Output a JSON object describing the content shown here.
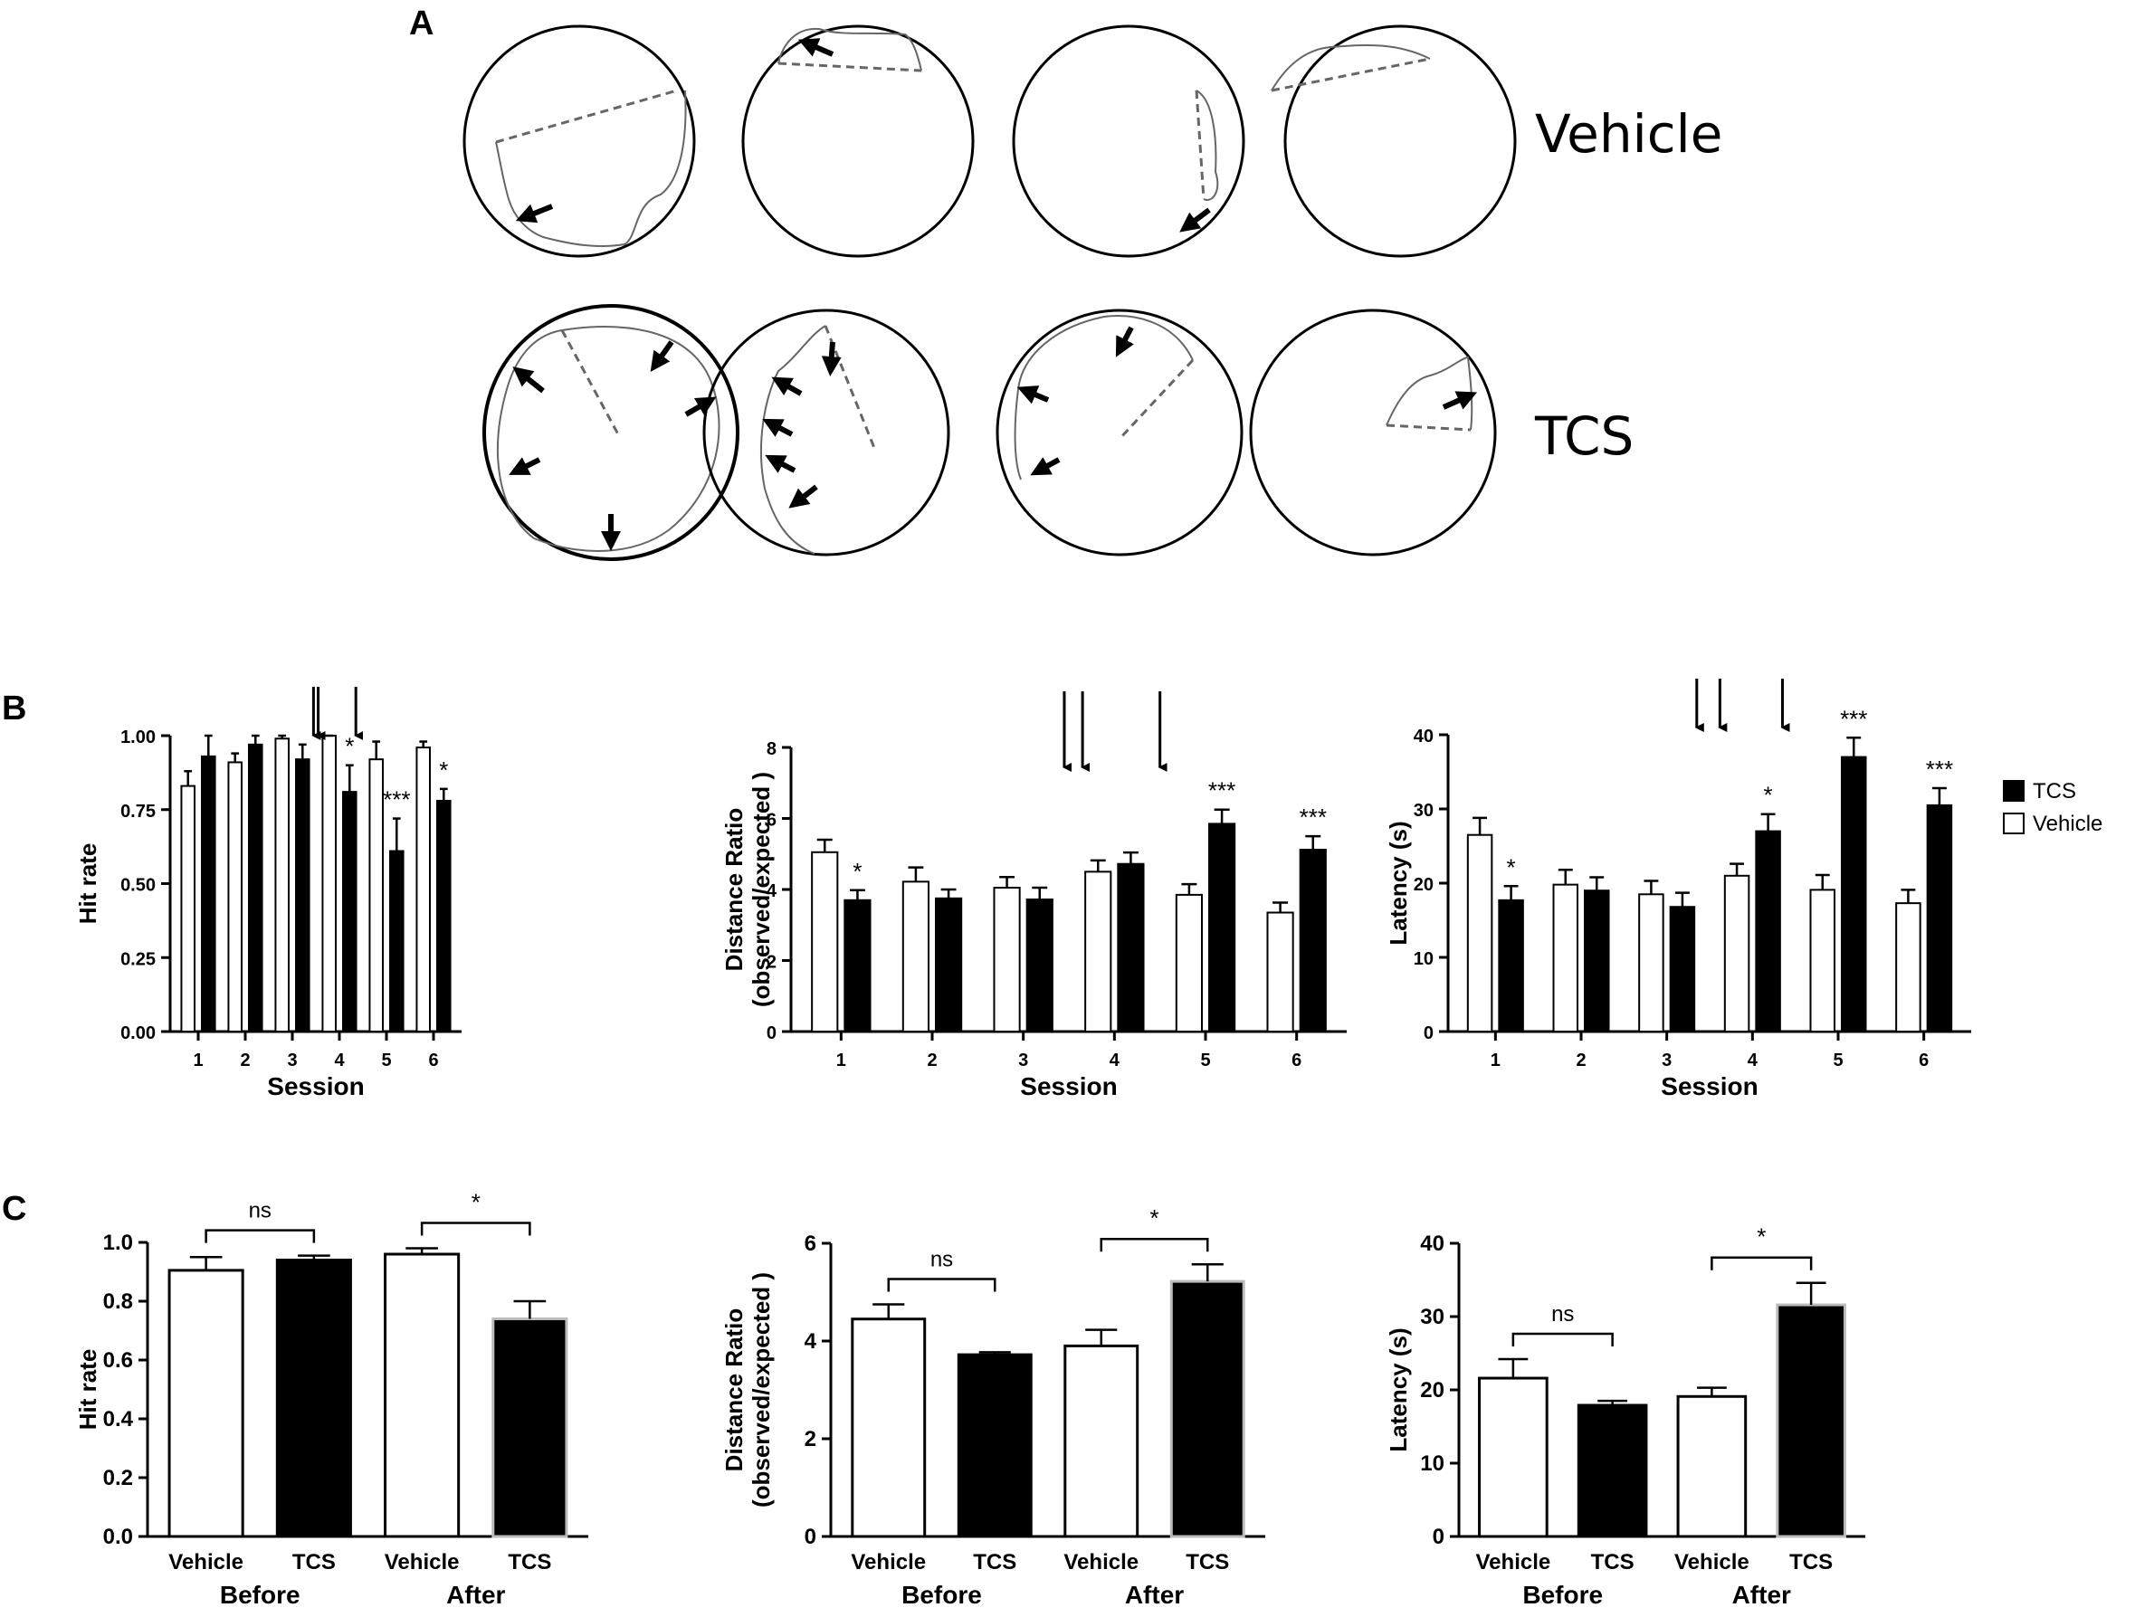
{
  "panels": {
    "A": "A",
    "B": "B",
    "C": "C"
  },
  "panel_a": {
    "rows": [
      {
        "label": "Vehicle",
        "icon": "trajectory-circle-icon"
      },
      {
        "label": "TCS",
        "icon": "trajectory-circle-icon"
      }
    ]
  },
  "legend": {
    "entries": [
      {
        "label": "TCS",
        "color": "#000000"
      },
      {
        "label": "Vehicle",
        "color": "#ffffff"
      }
    ]
  },
  "chart_data": [
    {
      "id": "b1",
      "type": "bar",
      "xlabel": "Session",
      "ylabel": "Hit rate",
      "categories": [
        "1",
        "2",
        "3",
        "4",
        "5",
        "6"
      ],
      "ylim": [
        0,
        1.0
      ],
      "yticks": [
        "0.00",
        "0.25",
        "0.50",
        "0.75",
        "1.00"
      ],
      "series": [
        {
          "name": "Vehicle",
          "color": "#ffffff",
          "values": [
            0.83,
            0.91,
            0.99,
            1.0,
            0.92,
            0.96
          ],
          "errors": [
            0.05,
            0.03,
            0.01,
            0.0,
            0.06,
            0.02
          ]
        },
        {
          "name": "TCS",
          "color": "#000000",
          "values": [
            0.93,
            0.97,
            0.92,
            0.81,
            0.61,
            0.78
          ],
          "errors": [
            0.07,
            0.03,
            0.05,
            0.09,
            0.11,
            0.04
          ]
        }
      ],
      "significance": [
        {
          "category": "4",
          "text": "*"
        },
        {
          "category": "5",
          "text": "***"
        },
        {
          "category": "6",
          "text": "*"
        }
      ],
      "arrow_positions": [
        3.45,
        3.55,
        4.35
      ]
    },
    {
      "id": "b2",
      "type": "bar",
      "xlabel": "Session",
      "ylabel": "Distance Ratio",
      "ylabel2": "(observed/expected )",
      "categories": [
        "1",
        "2",
        "3",
        "4",
        "5",
        "6"
      ],
      "ylim": [
        0,
        8
      ],
      "yticks": [
        "0",
        "2",
        "4",
        "6",
        "8"
      ],
      "series": [
        {
          "name": "Vehicle",
          "color": "#ffffff",
          "values": [
            5.05,
            4.22,
            4.05,
            4.5,
            3.85,
            3.35
          ],
          "errors": [
            0.35,
            0.4,
            0.3,
            0.32,
            0.3,
            0.28
          ]
        },
        {
          "name": "TCS",
          "color": "#000000",
          "values": [
            3.7,
            3.75,
            3.72,
            4.72,
            5.85,
            5.12
          ],
          "errors": [
            0.28,
            0.25,
            0.33,
            0.32,
            0.4,
            0.38
          ]
        }
      ],
      "significance": [
        {
          "category": "1",
          "text": "*"
        },
        {
          "category": "5",
          "text": "***"
        },
        {
          "category": "6",
          "text": "***"
        }
      ],
      "arrow_positions": [
        3.45,
        3.65,
        4.5
      ]
    },
    {
      "id": "b3",
      "type": "bar",
      "xlabel": "Session",
      "ylabel": "Latency (s)",
      "categories": [
        "1",
        "2",
        "3",
        "4",
        "5",
        "6"
      ],
      "ylim": [
        0,
        40
      ],
      "yticks": [
        "0",
        "10",
        "20",
        "30",
        "40"
      ],
      "series": [
        {
          "name": "Vehicle",
          "color": "#ffffff",
          "values": [
            26.5,
            19.8,
            18.5,
            21.0,
            19.1,
            17.3
          ],
          "errors": [
            2.3,
            2.0,
            1.8,
            1.6,
            2.0,
            1.8
          ]
        },
        {
          "name": "TCS",
          "color": "#000000",
          "values": [
            17.7,
            19.0,
            16.8,
            27.0,
            37.0,
            30.5
          ],
          "errors": [
            1.9,
            1.8,
            1.9,
            2.3,
            2.6,
            2.3
          ]
        }
      ],
      "significance": [
        {
          "category": "1",
          "text": "*"
        },
        {
          "category": "4",
          "text": "*"
        },
        {
          "category": "5",
          "text": "***"
        },
        {
          "category": "6",
          "text": "***"
        }
      ],
      "arrow_positions": [
        3.35,
        3.62,
        4.35
      ]
    },
    {
      "id": "c1",
      "type": "bar",
      "ylabel": "Hit rate",
      "categories": [
        "Vehicle",
        "TCS",
        "Vehicle",
        "TCS"
      ],
      "groups": [
        "Before",
        "After"
      ],
      "colors": [
        "#ffffff",
        "#000000",
        "#ffffff",
        "#000000"
      ],
      "values": [
        0.905,
        0.94,
        0.96,
        0.74
      ],
      "errors": [
        0.045,
        0.015,
        0.02,
        0.06
      ],
      "ylim": [
        0,
        1.0
      ],
      "yticks": [
        "0.0",
        "0.2",
        "0.4",
        "0.6",
        "0.8",
        "1.0"
      ],
      "brackets": [
        {
          "from": 0,
          "to": 1,
          "text": "ns"
        },
        {
          "from": 2,
          "to": 3,
          "text": "*"
        }
      ]
    },
    {
      "id": "c2",
      "type": "bar",
      "ylabel": "Distance Ratio",
      "ylabel2": "(observed/expected )",
      "categories": [
        "Vehicle",
        "TCS",
        "Vehicle",
        "TCS"
      ],
      "groups": [
        "Before",
        "After"
      ],
      "colors": [
        "#ffffff",
        "#000000",
        "#ffffff",
        "#000000"
      ],
      "values": [
        4.45,
        3.72,
        3.9,
        5.22
      ],
      "errors": [
        0.3,
        0.05,
        0.33,
        0.35
      ],
      "ylim": [
        0,
        6
      ],
      "yticks": [
        "0",
        "2",
        "4",
        "6"
      ],
      "brackets": [
        {
          "from": 0,
          "to": 1,
          "text": "ns"
        },
        {
          "from": 2,
          "to": 3,
          "text": "*"
        }
      ]
    },
    {
      "id": "c3",
      "type": "bar",
      "ylabel": "Latency (s)",
      "categories": [
        "Vehicle",
        "TCS",
        "Vehicle",
        "TCS"
      ],
      "groups": [
        "Before",
        "After"
      ],
      "colors": [
        "#ffffff",
        "#000000",
        "#ffffff",
        "#000000"
      ],
      "values": [
        21.6,
        17.9,
        19.1,
        31.6
      ],
      "errors": [
        2.6,
        0.6,
        1.2,
        3.0
      ],
      "ylim": [
        0,
        40
      ],
      "yticks": [
        "0",
        "10",
        "20",
        "30",
        "40"
      ],
      "brackets": [
        {
          "from": 0,
          "to": 1,
          "text": "ns"
        },
        {
          "from": 2,
          "to": 3,
          "text": "*"
        }
      ]
    }
  ]
}
